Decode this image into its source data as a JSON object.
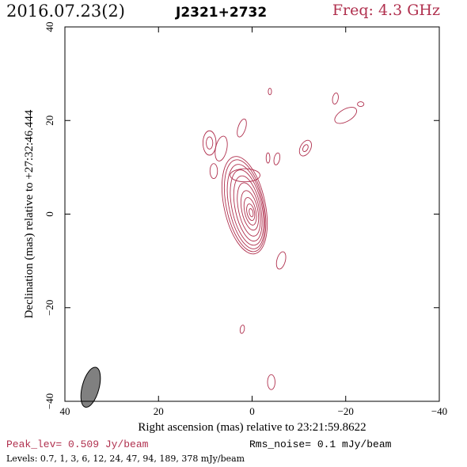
{
  "header": {
    "date": "2016.07.23(2)",
    "source": "J2321+2732",
    "freq": "Freq: 4.3 GHz"
  },
  "footer": {
    "peak": "Peak_lev=  0.509 Jy/beam",
    "rms": "Rms_noise=  0.1 mJy/beam",
    "levels": "Levels: 0.7,    1,    3,    6,   12,   24,   47,   94,  189,  378 mJy/beam"
  },
  "colors": {
    "contour": "#b0304e",
    "beam": "#808080",
    "axis": "#000000"
  },
  "chart_data": {
    "type": "contour",
    "xlabel": "Right ascension (mas) relative to 23:21:59.8622",
    "ylabel": "Declination (mas) relative to +27:32:46.444",
    "xlim": [
      40,
      -40
    ],
    "ylim": [
      -40,
      40
    ],
    "xticks": [
      40,
      20,
      0,
      -20,
      -40
    ],
    "yticks": [
      -40,
      -20,
      0,
      20,
      40
    ],
    "xtick_labels": [
      "40",
      "20",
      "0",
      "−20",
      "−40"
    ],
    "ytick_labels": [
      "−40",
      "−20",
      "0",
      "20",
      "40"
    ],
    "levels_mJy": [
      0.7,
      1,
      3,
      6,
      12,
      24,
      47,
      94,
      189,
      378
    ],
    "core": {
      "center": [
        0.2,
        0.3
      ],
      "contours": [
        {
          "rx": 4.4,
          "ry": 10.6,
          "cx": 1.6,
          "cy": 1.9,
          "angle": -12
        },
        {
          "rx": 4.0,
          "ry": 10.0,
          "cx": 1.5,
          "cy": 1.8,
          "angle": -12
        },
        {
          "rx": 3.6,
          "ry": 9.2,
          "cx": 1.3,
          "cy": 1.6,
          "angle": -12
        },
        {
          "rx": 3.2,
          "ry": 8.2,
          "cx": 1.1,
          "cy": 1.4,
          "angle": -12
        },
        {
          "rx": 2.7,
          "ry": 7.1,
          "cx": 0.9,
          "cy": 1.2,
          "angle": -12
        },
        {
          "rx": 2.2,
          "ry": 5.8,
          "cx": 0.7,
          "cy": 1.0,
          "angle": -12
        },
        {
          "rx": 1.7,
          "ry": 4.3,
          "cx": 0.5,
          "cy": 0.8,
          "angle": -12
        },
        {
          "rx": 1.2,
          "ry": 3.0,
          "cx": 0.4,
          "cy": 0.6,
          "angle": -12
        },
        {
          "rx": 0.8,
          "ry": 1.8,
          "cx": 0.3,
          "cy": 0.4,
          "angle": -12
        },
        {
          "rx": 0.4,
          "ry": 0.9,
          "cx": 0.2,
          "cy": 0.3,
          "angle": -12
        }
      ]
    },
    "components": [
      {
        "cx": 1.5,
        "cy": 8.3,
        "rx": 3.2,
        "ry": 1.4,
        "angle": 0
      },
      {
        "cx": 9.1,
        "cy": 15.2,
        "rx": 1.4,
        "ry": 2.6,
        "angle": 0
      },
      {
        "cx": 9.1,
        "cy": 15.2,
        "rx": 0.7,
        "ry": 1.3,
        "angle": 0
      },
      {
        "cx": 6.6,
        "cy": 14.0,
        "rx": 1.2,
        "ry": 2.7,
        "angle": 12
      },
      {
        "cx": 8.2,
        "cy": 9.2,
        "rx": 0.8,
        "ry": 1.6,
        "angle": 0
      },
      {
        "cx": 2.2,
        "cy": 18.4,
        "rx": 0.8,
        "ry": 2.0,
        "angle": 18
      },
      {
        "cx": -3.4,
        "cy": 12.0,
        "rx": 0.4,
        "ry": 1.1,
        "angle": 0
      },
      {
        "cx": -5.3,
        "cy": 11.8,
        "rx": 0.6,
        "ry": 1.3,
        "angle": 12
      },
      {
        "cx": -11.4,
        "cy": 14.1,
        "rx": 1.1,
        "ry": 1.8,
        "angle": 28
      },
      {
        "cx": -11.4,
        "cy": 14.1,
        "rx": 0.5,
        "ry": 0.8,
        "angle": 28
      },
      {
        "cx": -3.8,
        "cy": 26.2,
        "rx": 0.35,
        "ry": 0.7,
        "angle": 0
      },
      {
        "cx": -17.8,
        "cy": 24.7,
        "rx": 0.6,
        "ry": 1.2,
        "angle": 10
      },
      {
        "cx": -20.0,
        "cy": 21.1,
        "rx": 2.6,
        "ry": 1.3,
        "angle": -30
      },
      {
        "cx": -23.2,
        "cy": 23.5,
        "rx": 0.7,
        "ry": 0.5,
        "angle": 0
      },
      {
        "cx": -6.2,
        "cy": -9.9,
        "rx": 0.9,
        "ry": 1.9,
        "angle": 15
      },
      {
        "cx": 2.1,
        "cy": -24.6,
        "rx": 0.45,
        "ry": 0.9,
        "angle": 10
      },
      {
        "cx": -4.1,
        "cy": -35.9,
        "rx": 0.8,
        "ry": 1.6,
        "angle": 0
      }
    ],
    "beam": {
      "cx": 34.5,
      "cy": -37.0,
      "major": 4.4,
      "minor": 1.8,
      "pa": 15
    }
  }
}
